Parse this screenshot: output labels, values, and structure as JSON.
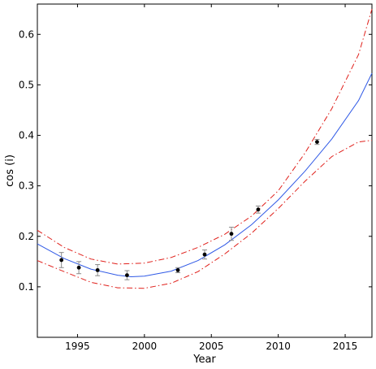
{
  "chart_data": {
    "type": "line",
    "title": "",
    "xlabel": "Year",
    "ylabel": "cos (i)",
    "xlim": [
      1992,
      2017
    ],
    "ylim": [
      0,
      0.66
    ],
    "xticks": [
      1995,
      2000,
      2005,
      2010,
      2015
    ],
    "yticks": [
      0.1,
      0.2,
      0.3,
      0.4,
      0.5,
      0.6
    ],
    "grid": false,
    "legend": "none",
    "colors": {
      "fit": "#2f59e6",
      "confidence": "#e0201b",
      "points": "#000000",
      "errorbars": "#8a8a8a"
    },
    "series": [
      {
        "style": "solid",
        "x": [
          1992,
          1994,
          1996,
          1998,
          1999,
          2000,
          2002,
          2004,
          2006,
          2008,
          2010,
          2012,
          2014,
          2016,
          2017
        ],
        "y": [
          0.185,
          0.156,
          0.135,
          0.123,
          0.12,
          0.121,
          0.131,
          0.152,
          0.183,
          0.223,
          0.272,
          0.329,
          0.393,
          0.469,
          0.523
        ]
      },
      {
        "style": "dash-dot",
        "x": [
          1992,
          1994,
          1996,
          1998,
          2000,
          2002,
          2004,
          2006,
          2008,
          2010,
          2012,
          2014,
          2016,
          2017
        ],
        "y": [
          0.212,
          0.178,
          0.155,
          0.145,
          0.147,
          0.158,
          0.178,
          0.204,
          0.24,
          0.29,
          0.365,
          0.453,
          0.56,
          0.65
        ]
      },
      {
        "style": "dash-dot",
        "x": [
          1992,
          1994,
          1996,
          1998,
          2000,
          2002,
          2004,
          2006,
          2008,
          2010,
          2012,
          2014,
          2016,
          2017
        ],
        "y": [
          0.152,
          0.13,
          0.109,
          0.098,
          0.097,
          0.107,
          0.13,
          0.165,
          0.206,
          0.255,
          0.309,
          0.358,
          0.387,
          0.39
        ]
      }
    ],
    "points": {
      "x": [
        1993.8,
        1995.1,
        1996.5,
        1998.7,
        2002.5,
        2004.5,
        2006.5,
        2008.5,
        2012.9
      ],
      "y": [
        0.153,
        0.138,
        0.133,
        0.123,
        0.133,
        0.164,
        0.205,
        0.253,
        0.387
      ],
      "err": [
        0.015,
        0.012,
        0.011,
        0.009,
        0.005,
        0.009,
        0.013,
        0.007,
        0.005
      ]
    }
  }
}
